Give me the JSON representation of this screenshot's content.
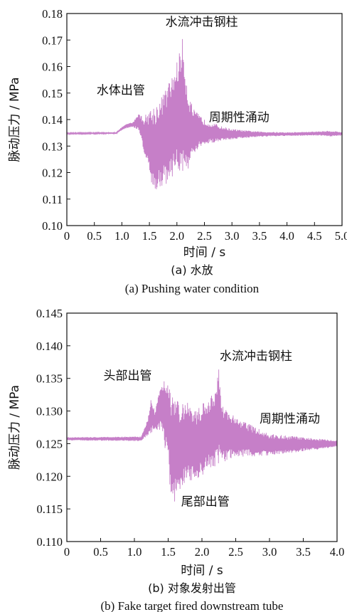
{
  "chart_data": [
    {
      "type": "line",
      "panel": "a",
      "caption_cn": "(a) 水放",
      "caption_en": "(a) Pushing water condition",
      "xlabel": "时间 / s",
      "ylabel": "脉动压力 / MPa",
      "xlim": [
        0,
        5.0
      ],
      "ylim": [
        0.1,
        0.18
      ],
      "x_ticks": [
        "0",
        "0.5",
        "1.0",
        "1.5",
        "2.0",
        "2.5",
        "3.0",
        "3.5",
        "4.0",
        "4.5",
        "5.0"
      ],
      "y_ticks": [
        "0.10",
        "0.11",
        "0.12",
        "0.13",
        "0.14",
        "0.15",
        "0.16",
        "0.17",
        "0.18"
      ],
      "line_color": "#c67fc8",
      "annotations": [
        {
          "text": "水流冲击钢柱",
          "x": 2.45,
          "y": 0.1753
        },
        {
          "text": "水体出管",
          "x": 0.98,
          "y": 0.1495
        },
        {
          "text": "周期性涌动",
          "x": 3.13,
          "y": 0.1393
        }
      ],
      "envelope": [
        [
          0.0,
          0.135,
          0.1345
        ],
        [
          0.9,
          0.1352,
          0.1346
        ],
        [
          1.0,
          0.1372,
          0.136
        ],
        [
          1.1,
          0.1385,
          0.1368
        ],
        [
          1.2,
          0.139,
          0.1372
        ],
        [
          1.3,
          0.1425,
          0.136
        ],
        [
          1.4,
          0.141,
          0.128
        ],
        [
          1.5,
          0.144,
          0.118
        ],
        [
          1.6,
          0.1455,
          0.1105
        ],
        [
          1.7,
          0.148,
          0.115
        ],
        [
          1.8,
          0.152,
          0.115
        ],
        [
          1.9,
          0.156,
          0.118
        ],
        [
          2.0,
          0.162,
          0.12
        ],
        [
          2.1,
          0.1705,
          0.119
        ],
        [
          2.2,
          0.151,
          0.121
        ],
        [
          2.3,
          0.144,
          0.126
        ],
        [
          2.4,
          0.142,
          0.129
        ],
        [
          2.5,
          0.14,
          0.13
        ],
        [
          2.6,
          0.139,
          0.131
        ],
        [
          2.7,
          0.1385,
          0.1315
        ],
        [
          2.8,
          0.1375,
          0.132
        ],
        [
          3.0,
          0.1365,
          0.1325
        ],
        [
          3.2,
          0.136,
          0.133
        ],
        [
          3.5,
          0.1355,
          0.1335
        ],
        [
          4.0,
          0.1352,
          0.1338
        ],
        [
          4.5,
          0.1355,
          0.134
        ],
        [
          4.8,
          0.1358,
          0.1336
        ],
        [
          5.0,
          0.1353,
          0.134
        ]
      ]
    },
    {
      "type": "line",
      "panel": "b",
      "caption_cn": "(b) 对象发射出管",
      "caption_en": "(b) Fake target fired downstream tube",
      "xlabel": "时间 / s",
      "ylabel": "脉动压力 / MPa",
      "xlim": [
        0,
        4.0
      ],
      "ylim": [
        0.11,
        0.145
      ],
      "x_ticks": [
        "0",
        "0.5",
        "1.0",
        "1.5",
        "2.0",
        "2.5",
        "3.0",
        "3.5",
        "4.0"
      ],
      "y_ticks": [
        "0.110",
        "0.115",
        "0.120",
        "0.125",
        "0.130",
        "0.135",
        "0.140",
        "0.145"
      ],
      "line_color": "#c67fc8",
      "annotations": [
        {
          "text": "头部出管",
          "x": 0.9,
          "y": 0.1348
        },
        {
          "text": "水流冲击钢柱",
          "x": 2.8,
          "y": 0.1378
        },
        {
          "text": "周期性涌动",
          "x": 3.3,
          "y": 0.1282
        },
        {
          "text": "尾部出管",
          "x": 2.05,
          "y": 0.1155
        }
      ],
      "envelope": [
        [
          0.0,
          0.126,
          0.1255
        ],
        [
          1.1,
          0.1261,
          0.1254
        ],
        [
          1.2,
          0.129,
          0.1262
        ],
        [
          1.25,
          0.1325,
          0.1265
        ],
        [
          1.3,
          0.13,
          0.127
        ],
        [
          1.4,
          0.1345,
          0.127
        ],
        [
          1.5,
          0.1355,
          0.122
        ],
        [
          1.55,
          0.133,
          0.115
        ],
        [
          1.6,
          0.132,
          0.116
        ],
        [
          1.7,
          0.131,
          0.118
        ],
        [
          1.8,
          0.132,
          0.119
        ],
        [
          1.9,
          0.13,
          0.1195
        ],
        [
          2.0,
          0.131,
          0.12
        ],
        [
          2.1,
          0.132,
          0.121
        ],
        [
          2.2,
          0.133,
          0.1215
        ],
        [
          2.25,
          0.1365,
          0.122
        ],
        [
          2.3,
          0.131,
          0.122
        ],
        [
          2.4,
          0.13,
          0.1225
        ],
        [
          2.5,
          0.129,
          0.1228
        ],
        [
          2.7,
          0.128,
          0.123
        ],
        [
          3.0,
          0.1265,
          0.1232
        ],
        [
          3.5,
          0.126,
          0.1238
        ],
        [
          4.0,
          0.1255,
          0.1245
        ]
      ]
    }
  ]
}
